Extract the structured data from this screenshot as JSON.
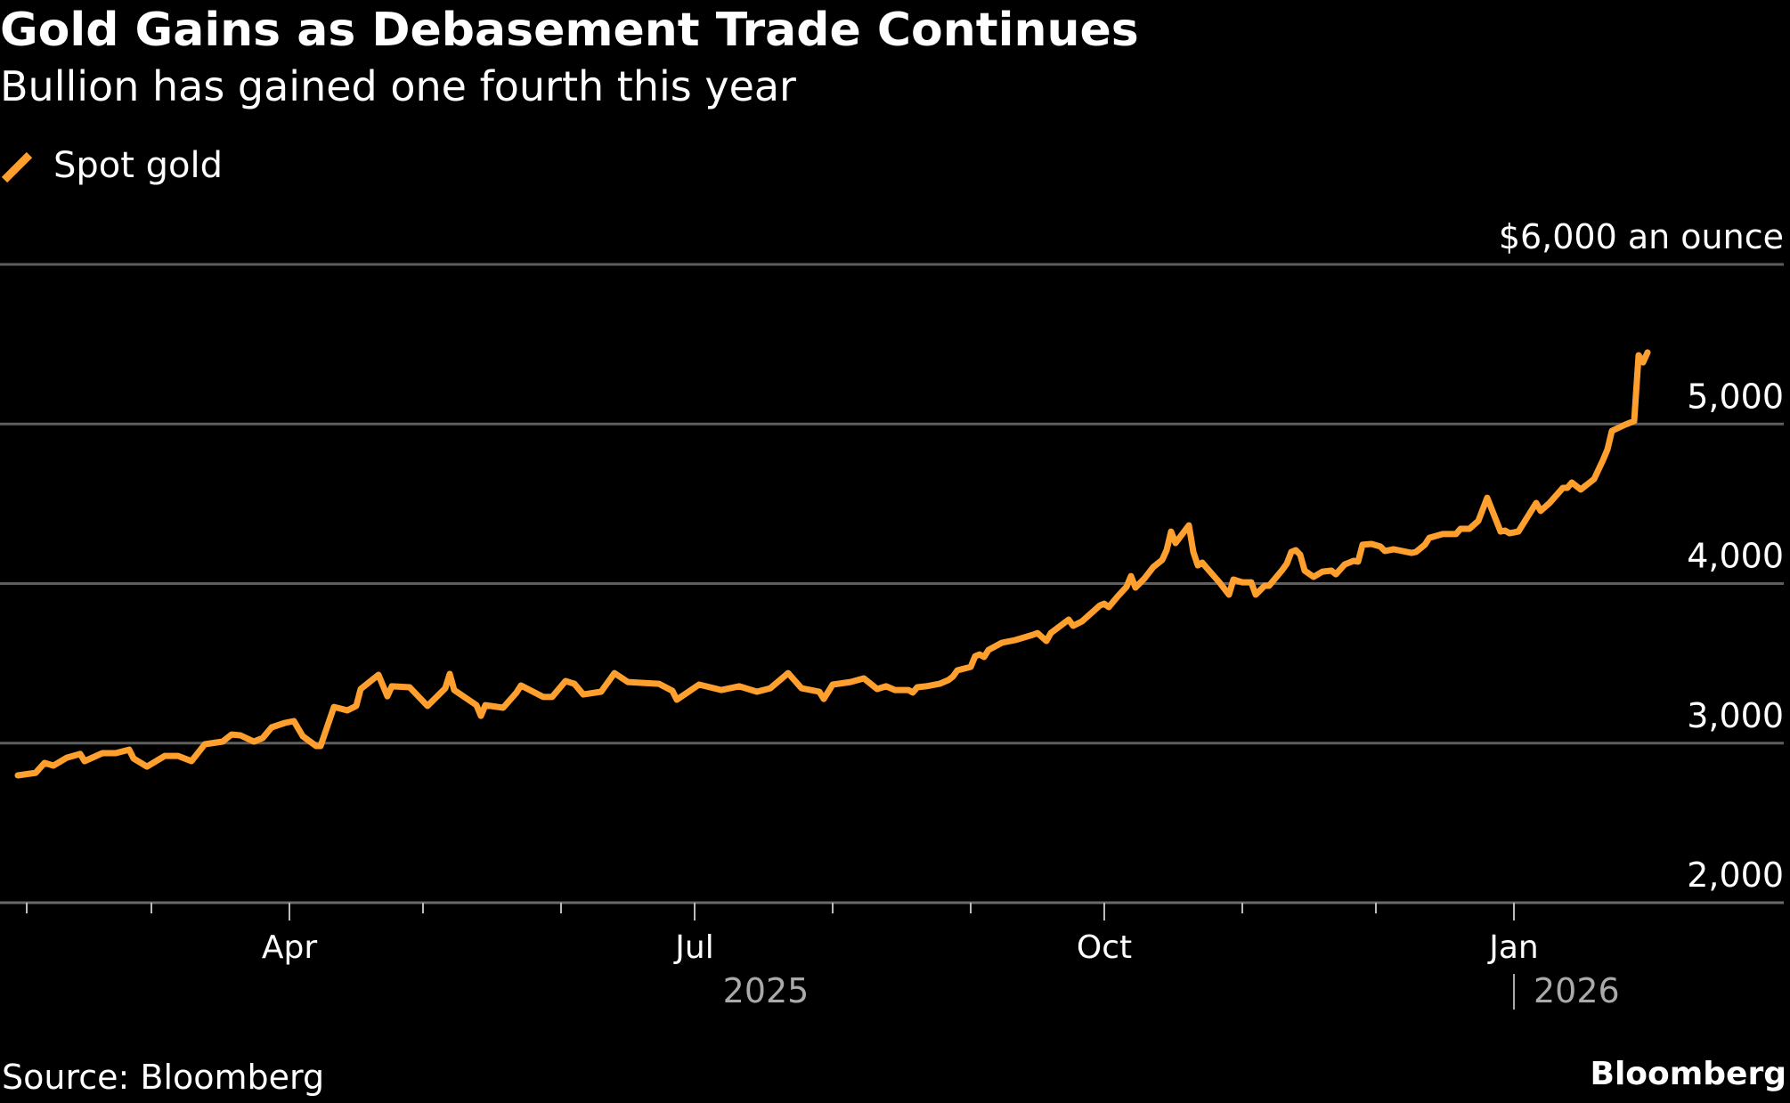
{
  "header": {
    "title": "Gold Gains as Debasement Trade Continues",
    "subtitle": "Bullion has gained one fourth this year"
  },
  "legend": {
    "items": [
      {
        "label": "Spot gold",
        "color": "#FF9F2E",
        "icon": "diagonal-line-swatch"
      }
    ]
  },
  "footer": {
    "source": "Source: Bloomberg",
    "brand": "Bloomberg"
  },
  "chart_data": {
    "type": "line",
    "title": "Gold Gains as Debasement Trade Continues",
    "subtitle": "Bullion has gained one fourth this year",
    "xlabel": "",
    "ylabel": "$ an ounce",
    "y_unit_label": "$6,000 an ounce",
    "ylim": [
      2000,
      6000
    ],
    "xlim": [
      "2025-01-01",
      "2026-02-10"
    ],
    "grid": true,
    "legend_position": "top-left",
    "y_ticks": [
      {
        "value": 6000,
        "label": "$6,000 an ounce"
      },
      {
        "value": 5000,
        "label": "5,000"
      },
      {
        "value": 4000,
        "label": "4,000"
      },
      {
        "value": 3000,
        "label": "3,000"
      },
      {
        "value": 2000,
        "label": "2,000"
      }
    ],
    "x_ticks": [
      {
        "date": "2025-02-01",
        "label": "",
        "major": false
      },
      {
        "date": "2025-03-01",
        "label": "",
        "major": false
      },
      {
        "date": "2025-04-01",
        "label": "Apr",
        "major": true
      },
      {
        "date": "2025-05-01",
        "label": "",
        "major": false
      },
      {
        "date": "2025-06-01",
        "label": "",
        "major": false
      },
      {
        "date": "2025-07-01",
        "label": "Jul",
        "major": true
      },
      {
        "date": "2025-08-01",
        "label": "",
        "major": false
      },
      {
        "date": "2025-09-01",
        "label": "",
        "major": false
      },
      {
        "date": "2025-10-01",
        "label": "Oct",
        "major": true
      },
      {
        "date": "2025-11-01",
        "label": "",
        "major": false
      },
      {
        "date": "2025-12-01",
        "label": "",
        "major": false
      },
      {
        "date": "2026-01-01",
        "label": "Jan",
        "major": true
      }
    ],
    "year_labels": [
      {
        "date": "2025-07-01",
        "label": "2025",
        "divider": false
      },
      {
        "date": "2026-01-01",
        "label": "2026",
        "divider": true
      }
    ],
    "series": [
      {
        "name": "Spot gold",
        "color": "#FF9F2E",
        "points": [
          [
            "2025-01-30",
            2798
          ],
          [
            "2025-02-03",
            2814
          ],
          [
            "2025-02-05",
            2876
          ],
          [
            "2025-02-07",
            2859
          ],
          [
            "2025-02-10",
            2909
          ],
          [
            "2025-02-13",
            2932
          ],
          [
            "2025-02-14",
            2887
          ],
          [
            "2025-02-18",
            2937
          ],
          [
            "2025-02-21",
            2937
          ],
          [
            "2025-02-24",
            2959
          ],
          [
            "2025-02-25",
            2904
          ],
          [
            "2025-02-28",
            2853
          ],
          [
            "2025-03-04",
            2920
          ],
          [
            "2025-03-07",
            2920
          ],
          [
            "2025-03-10",
            2887
          ],
          [
            "2025-03-13",
            2993
          ],
          [
            "2025-03-17",
            3010
          ],
          [
            "2025-03-19",
            3054
          ],
          [
            "2025-03-21",
            3049
          ],
          [
            "2025-03-24",
            3010
          ],
          [
            "2025-03-26",
            3032
          ],
          [
            "2025-03-28",
            3099
          ],
          [
            "2025-03-31",
            3127
          ],
          [
            "2025-04-02",
            3138
          ],
          [
            "2025-04-04",
            3043
          ],
          [
            "2025-04-07",
            2982
          ],
          [
            "2025-04-08",
            2982
          ],
          [
            "2025-04-11",
            3227
          ],
          [
            "2025-04-14",
            3205
          ],
          [
            "2025-04-16",
            3233
          ],
          [
            "2025-04-17",
            3339
          ],
          [
            "2025-04-21",
            3428
          ],
          [
            "2025-04-23",
            3294
          ],
          [
            "2025-04-24",
            3356
          ],
          [
            "2025-04-28",
            3350
          ],
          [
            "2025-05-02",
            3233
          ],
          [
            "2025-05-06",
            3344
          ],
          [
            "2025-05-07",
            3434
          ],
          [
            "2025-05-08",
            3333
          ],
          [
            "2025-05-13",
            3238
          ],
          [
            "2025-05-14",
            3171
          ],
          [
            "2025-05-15",
            3238
          ],
          [
            "2025-05-19",
            3222
          ],
          [
            "2025-05-22",
            3317
          ],
          [
            "2025-05-23",
            3361
          ],
          [
            "2025-05-28",
            3289
          ],
          [
            "2025-05-30",
            3289
          ],
          [
            "2025-06-02",
            3389
          ],
          [
            "2025-06-04",
            3372
          ],
          [
            "2025-06-06",
            3305
          ],
          [
            "2025-06-10",
            3322
          ],
          [
            "2025-06-13",
            3439
          ],
          [
            "2025-06-16",
            3383
          ],
          [
            "2025-06-19",
            3378
          ],
          [
            "2025-06-23",
            3372
          ],
          [
            "2025-06-26",
            3328
          ],
          [
            "2025-06-27",
            3272
          ],
          [
            "2025-07-02",
            3367
          ],
          [
            "2025-07-07",
            3333
          ],
          [
            "2025-07-11",
            3356
          ],
          [
            "2025-07-15",
            3322
          ],
          [
            "2025-07-18",
            3344
          ],
          [
            "2025-07-22",
            3439
          ],
          [
            "2025-07-25",
            3344
          ],
          [
            "2025-07-29",
            3322
          ],
          [
            "2025-07-30",
            3277
          ],
          [
            "2025-08-01",
            3367
          ],
          [
            "2025-08-05",
            3383
          ],
          [
            "2025-08-08",
            3406
          ],
          [
            "2025-08-11",
            3339
          ],
          [
            "2025-08-13",
            3356
          ],
          [
            "2025-08-15",
            3333
          ],
          [
            "2025-08-18",
            3333
          ],
          [
            "2025-08-19",
            3317
          ],
          [
            "2025-08-20",
            3350
          ],
          [
            "2025-08-22",
            3356
          ],
          [
            "2025-08-25",
            3372
          ],
          [
            "2025-08-27",
            3395
          ],
          [
            "2025-08-28",
            3417
          ],
          [
            "2025-08-29",
            3456
          ],
          [
            "2025-09-01",
            3478
          ],
          [
            "2025-09-02",
            3545
          ],
          [
            "2025-09-03",
            3556
          ],
          [
            "2025-09-04",
            3540
          ],
          [
            "2025-09-05",
            3584
          ],
          [
            "2025-09-08",
            3629
          ],
          [
            "2025-09-10",
            3640
          ],
          [
            "2025-09-11",
            3646
          ],
          [
            "2025-09-15",
            3679
          ],
          [
            "2025-09-16",
            3690
          ],
          [
            "2025-09-18",
            3640
          ],
          [
            "2025-09-19",
            3690
          ],
          [
            "2025-09-23",
            3774
          ],
          [
            "2025-09-24",
            3735
          ],
          [
            "2025-09-26",
            3763
          ],
          [
            "2025-09-30",
            3863
          ],
          [
            "2025-10-01",
            3874
          ],
          [
            "2025-10-02",
            3852
          ],
          [
            "2025-10-04",
            3919
          ],
          [
            "2025-10-06",
            3980
          ],
          [
            "2025-10-07",
            4047
          ],
          [
            "2025-10-08",
            3975
          ],
          [
            "2025-10-10",
            4031
          ],
          [
            "2025-10-12",
            4103
          ],
          [
            "2025-10-14",
            4148
          ],
          [
            "2025-10-15",
            4209
          ],
          [
            "2025-10-16",
            4326
          ],
          [
            "2025-10-17",
            4254
          ],
          [
            "2025-10-20",
            4365
          ],
          [
            "2025-10-21",
            4198
          ],
          [
            "2025-10-22",
            4114
          ],
          [
            "2025-10-23",
            4131
          ],
          [
            "2025-10-24",
            4098
          ],
          [
            "2025-10-27",
            4003
          ],
          [
            "2025-10-29",
            3930
          ],
          [
            "2025-10-30",
            4025
          ],
          [
            "2025-11-01",
            4008
          ],
          [
            "2025-11-03",
            4008
          ],
          [
            "2025-11-04",
            3930
          ],
          [
            "2025-11-06",
            3986
          ],
          [
            "2025-11-07",
            3986
          ],
          [
            "2025-11-10",
            4086
          ],
          [
            "2025-11-11",
            4125
          ],
          [
            "2025-11-12",
            4198
          ],
          [
            "2025-11-13",
            4209
          ],
          [
            "2025-11-14",
            4181
          ],
          [
            "2025-11-15",
            4081
          ],
          [
            "2025-11-17",
            4042
          ],
          [
            "2025-11-19",
            4075
          ],
          [
            "2025-11-21",
            4081
          ],
          [
            "2025-11-22",
            4058
          ],
          [
            "2025-11-24",
            4120
          ],
          [
            "2025-11-26",
            4142
          ],
          [
            "2025-11-27",
            4137
          ],
          [
            "2025-11-28",
            4243
          ],
          [
            "2025-11-30",
            4248
          ],
          [
            "2025-12-02",
            4232
          ],
          [
            "2025-12-03",
            4204
          ],
          [
            "2025-12-05",
            4215
          ],
          [
            "2025-12-09",
            4192
          ],
          [
            "2025-12-10",
            4198
          ],
          [
            "2025-12-12",
            4243
          ],
          [
            "2025-12-13",
            4287
          ],
          [
            "2025-12-16",
            4310
          ],
          [
            "2025-12-19",
            4310
          ],
          [
            "2025-12-20",
            4343
          ],
          [
            "2025-12-22",
            4343
          ],
          [
            "2025-12-24",
            4393
          ],
          [
            "2025-12-26",
            4538
          ],
          [
            "2025-12-29",
            4326
          ],
          [
            "2025-12-30",
            4332
          ],
          [
            "2025-12-31",
            4315
          ],
          [
            "2026-01-02",
            4326
          ],
          [
            "2026-01-06",
            4505
          ],
          [
            "2026-01-07",
            4455
          ],
          [
            "2026-01-09",
            4505
          ],
          [
            "2026-01-12",
            4600
          ],
          [
            "2026-01-13",
            4600
          ],
          [
            "2026-01-14",
            4633
          ],
          [
            "2026-01-16",
            4589
          ],
          [
            "2026-01-19",
            4655
          ],
          [
            "2026-01-21",
            4773
          ],
          [
            "2026-01-22",
            4840
          ],
          [
            "2026-01-23",
            4957
          ],
          [
            "2026-01-26",
            4996
          ],
          [
            "2026-01-28",
            5018
          ],
          [
            "2026-01-29",
            5431
          ],
          [
            "2026-01-30",
            5386
          ],
          [
            "2026-01-31",
            5448
          ]
        ]
      }
    ]
  }
}
